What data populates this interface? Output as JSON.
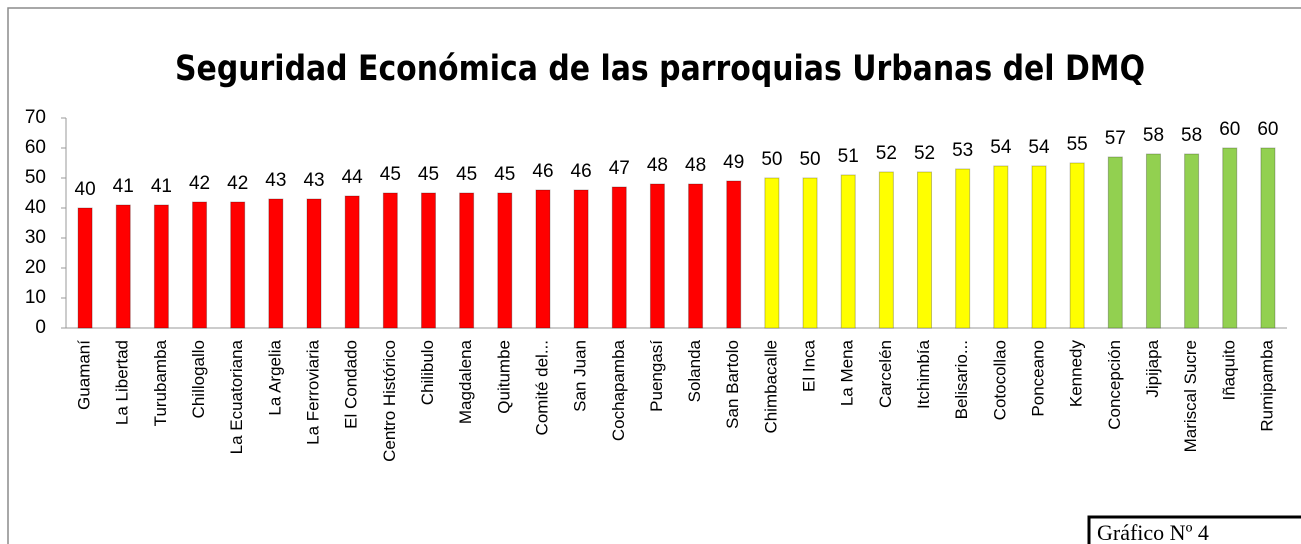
{
  "chart_data": {
    "type": "bar",
    "title": "Seguridad Económica de las parroquias Urbanas del DMQ",
    "categories": [
      "Guamaní",
      "La Libertad",
      "Turubamba",
      "Chillogallo",
      "La Ecuatoriana",
      "La Argelia",
      "La Ferroviaria",
      "El Condado",
      "Centro Histórico",
      "Chilibulo",
      "Magdalena",
      "Quitumbe",
      "Comité del...",
      "San Juan",
      "Cochapamba",
      "Puengasí",
      "Solanda",
      "San Bartolo",
      "Chimbacalle",
      "El Inca",
      "La Mena",
      "Carcelén",
      "Itchimbía",
      "Belisario...",
      "Cotocollao",
      "Ponceano",
      "Kennedy",
      "Concepción",
      "Jipijapa",
      "Mariscal Sucre",
      "Iñaquito",
      "Rumipamba"
    ],
    "values": [
      40,
      41,
      41,
      42,
      42,
      43,
      43,
      44,
      45,
      45,
      45,
      45,
      46,
      46,
      47,
      48,
      48,
      49,
      50,
      50,
      51,
      52,
      52,
      53,
      54,
      54,
      55,
      57,
      58,
      58,
      60,
      60
    ],
    "colors": [
      "#ff0000",
      "#ff0000",
      "#ff0000",
      "#ff0000",
      "#ff0000",
      "#ff0000",
      "#ff0000",
      "#ff0000",
      "#ff0000",
      "#ff0000",
      "#ff0000",
      "#ff0000",
      "#ff0000",
      "#ff0000",
      "#ff0000",
      "#ff0000",
      "#ff0000",
      "#ff0000",
      "#ffff00",
      "#ffff00",
      "#ffff00",
      "#ffff00",
      "#ffff00",
      "#ffff00",
      "#ffff00",
      "#ffff00",
      "#ffff00",
      "#92d050",
      "#92d050",
      "#92d050",
      "#92d050",
      "#92d050"
    ],
    "ylim": [
      0,
      70
    ],
    "yticks": [
      0,
      10,
      20,
      30,
      40,
      50,
      60,
      70
    ],
    "grid": false,
    "annotation": "Gráfico Nº 4"
  }
}
